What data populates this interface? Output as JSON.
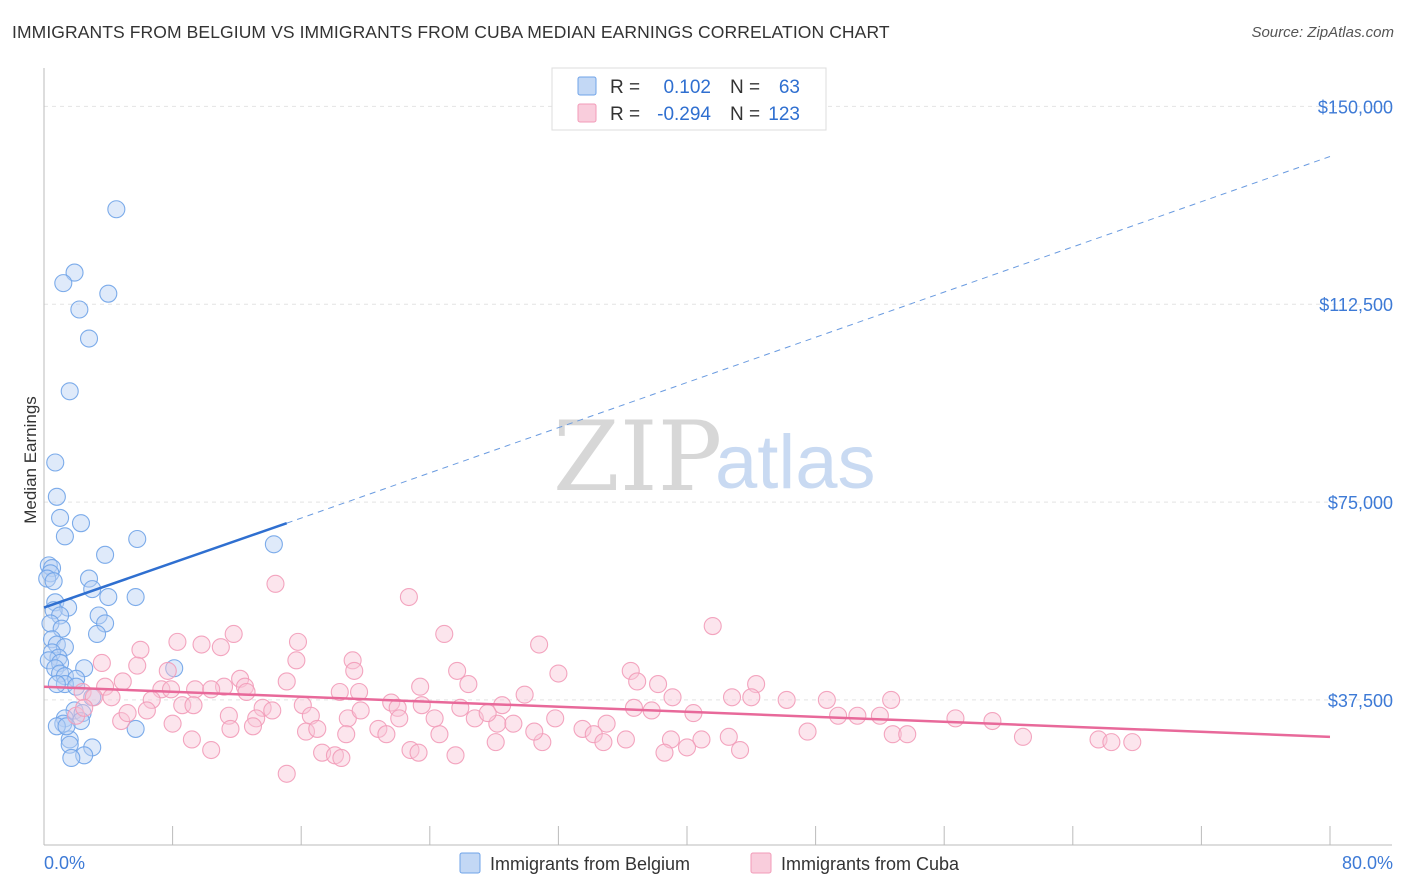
{
  "title": "IMMIGRANTS FROM BELGIUM VS IMMIGRANTS FROM CUBA MEDIAN EARNINGS CORRELATION CHART",
  "source": "Source: ZipAtlas.com",
  "watermark": {
    "zip": "ZIP",
    "atlas": "atlas"
  },
  "legend": {
    "rows": [
      {
        "r_label": "R =",
        "r_value": "0.102",
        "n_label": "N =",
        "n_value": "63",
        "color": "#6fa3e8"
      },
      {
        "r_label": "R =",
        "r_value": "-0.294",
        "n_label": "N =",
        "n_value": "123",
        "color": "#f29bb8"
      }
    ]
  },
  "bottom_legend": [
    {
      "label": "Immigrants from Belgium",
      "color": "#6fa3e8"
    },
    {
      "label": "Immigrants from Cuba",
      "color": "#f29bb8"
    }
  ],
  "chart_data": {
    "type": "scatter",
    "title": "IMMIGRANTS FROM BELGIUM VS IMMIGRANTS FROM CUBA MEDIAN EARNINGS CORRELATION CHART",
    "xlabel": "",
    "ylabel": "Median Earnings",
    "xlim": [
      0,
      80
    ],
    "ylim": [
      10000,
      155000
    ],
    "x_tick_labels": [
      "0.0%",
      "80.0%"
    ],
    "y_ticks": [
      37500,
      75000,
      112500,
      150000
    ],
    "y_tick_labels": [
      "$37,500",
      "$75,000",
      "$112,500",
      "$150,000"
    ],
    "grid": true,
    "legend_position": "top-center",
    "series": [
      {
        "name": "Immigrants from Belgium",
        "color": "#6fa3e8",
        "trend": {
          "x": [
            0.0,
            15.1
          ],
          "y": [
            55000,
            71000
          ],
          "dashed_to": [
            80.0,
            140500
          ]
        },
        "points": [
          [
            4.5,
            130500
          ],
          [
            1.9,
            118500
          ],
          [
            1.2,
            116500
          ],
          [
            4.0,
            114500
          ],
          [
            2.2,
            111500
          ],
          [
            2.8,
            106000
          ],
          [
            1.6,
            96000
          ],
          [
            0.7,
            82500
          ],
          [
            0.8,
            76000
          ],
          [
            1.0,
            72000
          ],
          [
            2.3,
            71000
          ],
          [
            1.3,
            68500
          ],
          [
            5.8,
            68000
          ],
          [
            14.3,
            67000
          ],
          [
            3.8,
            65000
          ],
          [
            0.3,
            63000
          ],
          [
            0.5,
            62500
          ],
          [
            0.4,
            61500
          ],
          [
            0.2,
            60500
          ],
          [
            0.6,
            60000
          ],
          [
            2.8,
            60500
          ],
          [
            3.0,
            58500
          ],
          [
            5.7,
            57000
          ],
          [
            0.7,
            56000
          ],
          [
            4.0,
            57000
          ],
          [
            1.5,
            55000
          ],
          [
            0.6,
            54500
          ],
          [
            1.0,
            53500
          ],
          [
            3.4,
            53500
          ],
          [
            3.8,
            52000
          ],
          [
            0.4,
            52000
          ],
          [
            1.1,
            51000
          ],
          [
            3.3,
            50000
          ],
          [
            0.5,
            49000
          ],
          [
            0.8,
            48000
          ],
          [
            1.3,
            47500
          ],
          [
            0.5,
            46500
          ],
          [
            0.9,
            45500
          ],
          [
            0.3,
            45000
          ],
          [
            1.0,
            44500
          ],
          [
            0.7,
            43500
          ],
          [
            2.5,
            43500
          ],
          [
            8.1,
            43500
          ],
          [
            1.0,
            42500
          ],
          [
            1.3,
            42000
          ],
          [
            2.0,
            41500
          ],
          [
            1.3,
            40500
          ],
          [
            0.8,
            40500
          ],
          [
            2.0,
            40000
          ],
          [
            3.0,
            38000
          ],
          [
            1.9,
            35500
          ],
          [
            2.4,
            35000
          ],
          [
            1.3,
            34000
          ],
          [
            1.2,
            33000
          ],
          [
            0.8,
            32500
          ],
          [
            2.3,
            33500
          ],
          [
            5.7,
            32000
          ],
          [
            1.6,
            30000
          ],
          [
            1.6,
            29000
          ],
          [
            3.0,
            28500
          ],
          [
            2.5,
            27000
          ],
          [
            1.7,
            26500
          ],
          [
            1.4,
            32500
          ]
        ]
      },
      {
        "name": "Immigrants from Cuba",
        "color": "#f29bb8",
        "trend": {
          "x": [
            0.0,
            80.0
          ],
          "y": [
            40000,
            30500
          ]
        },
        "points": [
          [
            14.4,
            59500
          ],
          [
            22.7,
            57000
          ],
          [
            41.6,
            51500
          ],
          [
            11.8,
            50000
          ],
          [
            24.9,
            50000
          ],
          [
            15.8,
            48500
          ],
          [
            30.8,
            48000
          ],
          [
            8.3,
            48500
          ],
          [
            9.8,
            48000
          ],
          [
            11.0,
            47500
          ],
          [
            6.0,
            47000
          ],
          [
            15.7,
            45000
          ],
          [
            19.2,
            45000
          ],
          [
            3.6,
            44500
          ],
          [
            5.8,
            44000
          ],
          [
            7.7,
            43000
          ],
          [
            19.3,
            43000
          ],
          [
            36.5,
            43000
          ],
          [
            25.7,
            43000
          ],
          [
            32.0,
            42500
          ],
          [
            12.2,
            41500
          ],
          [
            15.1,
            41000
          ],
          [
            4.9,
            41000
          ],
          [
            38.2,
            40500
          ],
          [
            44.3,
            40500
          ],
          [
            23.4,
            40000
          ],
          [
            26.4,
            40500
          ],
          [
            36.9,
            41000
          ],
          [
            12.5,
            40000
          ],
          [
            11.2,
            40000
          ],
          [
            3.8,
            40000
          ],
          [
            7.3,
            39500
          ],
          [
            7.9,
            39500
          ],
          [
            9.4,
            39500
          ],
          [
            10.4,
            39500
          ],
          [
            12.6,
            39000
          ],
          [
            18.4,
            39000
          ],
          [
            19.6,
            39000
          ],
          [
            29.9,
            38500
          ],
          [
            39.1,
            38000
          ],
          [
            4.2,
            38000
          ],
          [
            2.4,
            39000
          ],
          [
            6.7,
            37500
          ],
          [
            3.1,
            38000
          ],
          [
            8.6,
            36500
          ],
          [
            9.3,
            36500
          ],
          [
            13.6,
            36000
          ],
          [
            14.2,
            35500
          ],
          [
            16.1,
            36500
          ],
          [
            21.6,
            37000
          ],
          [
            22.0,
            36000
          ],
          [
            23.5,
            36500
          ],
          [
            25.9,
            36000
          ],
          [
            28.5,
            36500
          ],
          [
            36.7,
            36000
          ],
          [
            42.8,
            38000
          ],
          [
            44.0,
            38000
          ],
          [
            46.2,
            37500
          ],
          [
            48.7,
            37500
          ],
          [
            52.7,
            37500
          ],
          [
            37.8,
            35500
          ],
          [
            40.4,
            35000
          ],
          [
            11.5,
            34500
          ],
          [
            13.2,
            34000
          ],
          [
            16.6,
            34500
          ],
          [
            18.9,
            34000
          ],
          [
            22.1,
            34000
          ],
          [
            26.8,
            34000
          ],
          [
            28.2,
            33000
          ],
          [
            31.8,
            34000
          ],
          [
            35.0,
            33000
          ],
          [
            33.5,
            32000
          ],
          [
            49.4,
            34500
          ],
          [
            50.6,
            34500
          ],
          [
            52.0,
            34500
          ],
          [
            56.7,
            34000
          ],
          [
            59.0,
            33500
          ],
          [
            2.0,
            34500
          ],
          [
            4.8,
            33500
          ],
          [
            8.0,
            33000
          ],
          [
            11.6,
            32000
          ],
          [
            16.3,
            31500
          ],
          [
            17.0,
            32000
          ],
          [
            18.8,
            31000
          ],
          [
            20.8,
            32000
          ],
          [
            24.6,
            31000
          ],
          [
            29.2,
            33000
          ],
          [
            34.2,
            31000
          ],
          [
            34.8,
            29500
          ],
          [
            31.0,
            29500
          ],
          [
            39.0,
            30000
          ],
          [
            40.9,
            30000
          ],
          [
            42.6,
            30500
          ],
          [
            47.5,
            31500
          ],
          [
            52.8,
            31000
          ],
          [
            53.7,
            31000
          ],
          [
            60.9,
            30500
          ],
          [
            65.6,
            30000
          ],
          [
            66.4,
            29500
          ],
          [
            67.7,
            29500
          ],
          [
            9.2,
            30000
          ],
          [
            10.4,
            28000
          ],
          [
            17.3,
            27500
          ],
          [
            18.1,
            27000
          ],
          [
            22.8,
            28000
          ],
          [
            25.6,
            27000
          ],
          [
            40.0,
            28500
          ],
          [
            43.3,
            28000
          ],
          [
            28.1,
            29500
          ],
          [
            36.2,
            30000
          ],
          [
            15.1,
            23500
          ],
          [
            18.5,
            26500
          ],
          [
            23.3,
            27500
          ],
          [
            38.6,
            27500
          ],
          [
            2.5,
            36000
          ],
          [
            5.2,
            35000
          ],
          [
            6.4,
            35500
          ],
          [
            13.0,
            32500
          ],
          [
            19.7,
            35500
          ],
          [
            21.3,
            31000
          ],
          [
            24.3,
            34000
          ],
          [
            27.6,
            35000
          ],
          [
            30.5,
            31500
          ]
        ]
      }
    ]
  }
}
